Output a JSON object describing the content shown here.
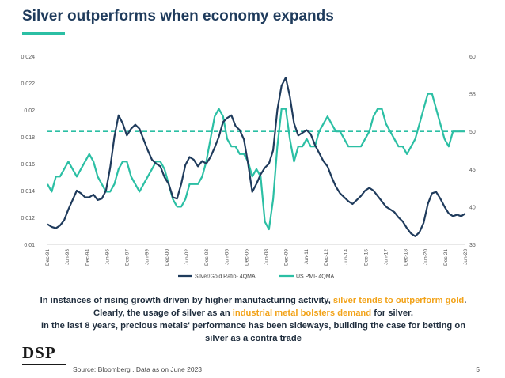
{
  "page": {
    "title": "Silver outperforms when economy expands",
    "body": {
      "p1_a": "In instances of rising growth driven by higher manufacturing activity, ",
      "p1_hl": "silver tends to outperform gold",
      "p1_b": ". Clearly, the usage of silver as an ",
      "p1_hl2": "industrial metal bolsters demand",
      "p1_c": " for silver.",
      "p2": "In the last 8 years, precious metals' performance has been sideways, building the case for betting on silver as a contra trade"
    },
    "logo": "DSP",
    "source": "Source: Bloomberg , Data as on June 2023",
    "page_number": "5",
    "colors": {
      "navy": "#1f3b5c",
      "teal": "#2bbfa4",
      "highlight": "#f2a31a"
    }
  },
  "chart_data": {
    "type": "line",
    "title": "",
    "x_ticks": [
      "Dec-91",
      "Jun-93",
      "Dec-94",
      "Jun-96",
      "Dec-97",
      "Jun-99",
      "Dec-00",
      "Jun-02",
      "Dec-03",
      "Jun-05",
      "Dec-06",
      "Jun-08",
      "Dec-09",
      "Jun-11",
      "Dec-12",
      "Jun-14",
      "Dec-15",
      "Jun-17",
      "Dec-18",
      "Jun-20",
      "Dec-21",
      "Jun-23"
    ],
    "y_left": {
      "min": 0.01,
      "max": 0.024,
      "ticks": [
        "0.01",
        "0.012",
        "0.014",
        "0.016",
        "0.018",
        "0.02",
        "0.022",
        "0.024"
      ]
    },
    "y_right": {
      "min": 35,
      "max": 60,
      "ticks": [
        "35",
        "40",
        "45",
        "50",
        "55",
        "60"
      ]
    },
    "reference_line": {
      "axis": "right",
      "value": 50,
      "style": "dashed"
    },
    "series": [
      {
        "name": "Silver/Gold Ratio- 4QMA",
        "axis": "left",
        "color": "#1f3b5c",
        "values": [
          0.0115,
          0.0113,
          0.0112,
          0.0114,
          0.0118,
          0.0126,
          0.0133,
          0.014,
          0.0138,
          0.0135,
          0.0135,
          0.0137,
          0.0133,
          0.0134,
          0.014,
          0.0157,
          0.018,
          0.0196,
          0.019,
          0.0181,
          0.0186,
          0.0189,
          0.0186,
          0.0178,
          0.017,
          0.0163,
          0.016,
          0.0158,
          0.015,
          0.0145,
          0.0135,
          0.0134,
          0.0145,
          0.0159,
          0.0165,
          0.0163,
          0.0158,
          0.0162,
          0.016,
          0.0165,
          0.0172,
          0.018,
          0.0191,
          0.0194,
          0.0196,
          0.0188,
          0.0185,
          0.0178,
          0.016,
          0.0139,
          0.0145,
          0.0152,
          0.0157,
          0.016,
          0.017,
          0.02,
          0.0218,
          0.0224,
          0.021,
          0.019,
          0.0181,
          0.0183,
          0.0185,
          0.0182,
          0.0174,
          0.0168,
          0.0162,
          0.0158,
          0.015,
          0.0143,
          0.0138,
          0.0135,
          0.0132,
          0.013,
          0.0133,
          0.0136,
          0.014,
          0.0142,
          0.014,
          0.0136,
          0.0132,
          0.0128,
          0.0126,
          0.0124,
          0.012,
          0.0117,
          0.0112,
          0.0108,
          0.0106,
          0.0109,
          0.0116,
          0.013,
          0.0138,
          0.0139,
          0.0134,
          0.0128,
          0.0123,
          0.0121,
          0.0122,
          0.0121,
          0.0123
        ]
      },
      {
        "name": "US PMI- 4QMA",
        "axis": "right",
        "color": "#2bbfa4",
        "values": [
          43,
          42,
          44,
          44,
          45,
          46,
          45,
          44,
          45,
          46,
          47,
          46,
          44,
          43,
          42,
          42,
          43,
          45,
          46,
          46,
          44,
          43,
          42,
          43,
          44,
          45,
          46,
          46,
          45,
          43,
          41,
          40,
          40,
          41,
          43,
          43,
          43,
          44,
          46,
          49,
          52,
          53,
          52,
          49,
          48,
          48,
          47,
          47,
          46,
          44,
          45,
          44,
          38,
          37,
          41,
          48,
          53,
          53,
          49,
          46,
          48,
          48,
          49,
          48,
          48,
          50,
          51,
          52,
          51,
          50,
          50,
          49,
          48,
          48,
          48,
          48,
          49,
          50,
          52,
          53,
          53,
          51,
          50,
          49,
          48,
          48,
          47,
          48,
          49,
          51,
          53,
          55,
          55,
          53,
          51,
          49,
          48,
          50,
          50,
          50,
          50
        ]
      }
    ],
    "legend": {
      "position": "bottom"
    }
  }
}
